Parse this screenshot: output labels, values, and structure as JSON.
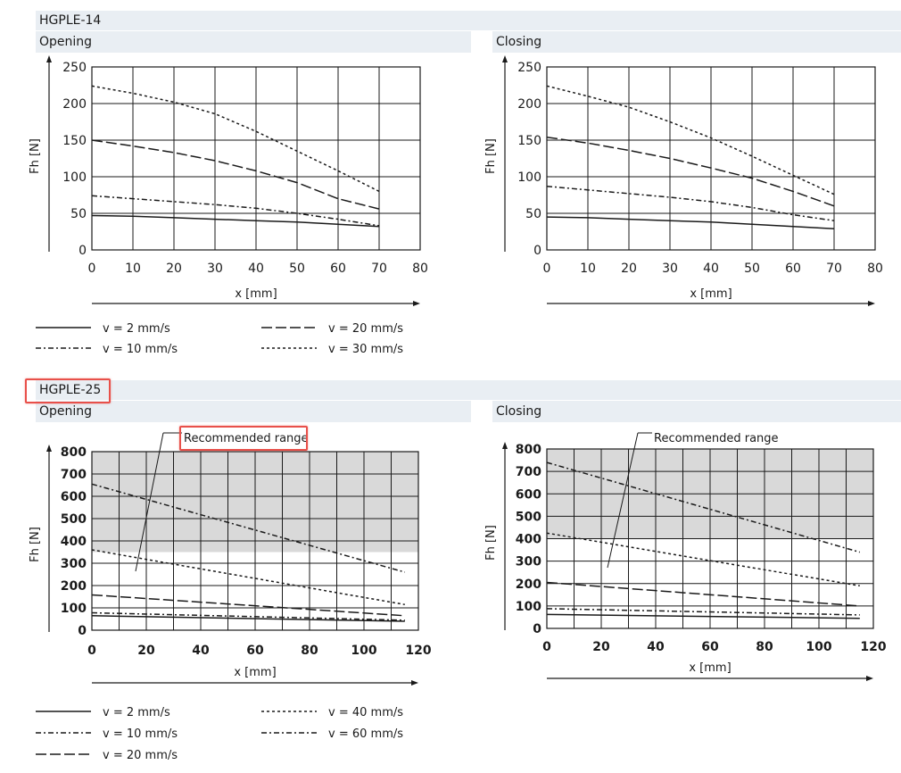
{
  "sections": [
    {
      "title": "HGPLE-14",
      "charts": [
        {
          "type": "line",
          "title": "Opening",
          "xlabel": "x [mm]",
          "ylabel": "Fh [N]",
          "xlim": [
            0,
            80
          ],
          "ylim": [
            0,
            250
          ],
          "x_ticks": [
            0,
            10,
            20,
            30,
            40,
            50,
            60,
            70,
            80
          ],
          "y_ticks": [
            0,
            50,
            100,
            150,
            200,
            250
          ],
          "grid": true,
          "series": [
            {
              "name": "v = 2 mm/s",
              "style": "solid",
              "x": [
                0,
                10,
                20,
                30,
                40,
                50,
                60,
                70
              ],
              "y": [
                47,
                46,
                44,
                42,
                40,
                38,
                35,
                32
              ]
            },
            {
              "name": "v = 10 mm/s",
              "style": "dashdot",
              "x": [
                0,
                10,
                20,
                30,
                40,
                50,
                60,
                70
              ],
              "y": [
                74,
                70,
                66,
                62,
                57,
                50,
                42,
                33
              ]
            },
            {
              "name": "v = 20 mm/s",
              "style": "longdash",
              "x": [
                0,
                10,
                20,
                30,
                40,
                50,
                60,
                70
              ],
              "y": [
                150,
                142,
                133,
                122,
                108,
                92,
                70,
                56
              ]
            },
            {
              "name": "v = 30 mm/s",
              "style": "dotted",
              "x": [
                0,
                10,
                20,
                30,
                40,
                50,
                60,
                70
              ],
              "y": [
                224,
                214,
                202,
                186,
                162,
                135,
                108,
                80
              ]
            }
          ]
        },
        {
          "type": "line",
          "title": "Closing",
          "xlabel": "x [mm]",
          "ylabel": "Fh [N]",
          "xlim": [
            0,
            80
          ],
          "ylim": [
            0,
            250
          ],
          "x_ticks": [
            0,
            10,
            20,
            30,
            40,
            50,
            60,
            70,
            80
          ],
          "y_ticks": [
            0,
            50,
            100,
            150,
            200,
            250
          ],
          "grid": true,
          "series": [
            {
              "name": "v = 2 mm/s",
              "style": "solid",
              "x": [
                0,
                10,
                20,
                30,
                40,
                50,
                60,
                70
              ],
              "y": [
                45,
                44,
                42,
                40,
                38,
                35,
                32,
                29
              ]
            },
            {
              "name": "v = 10 mm/s",
              "style": "dashdot",
              "x": [
                0,
                10,
                20,
                30,
                40,
                50,
                60,
                70
              ],
              "y": [
                87,
                82,
                77,
                72,
                66,
                58,
                48,
                40
              ]
            },
            {
              "name": "v = 20 mm/s",
              "style": "longdash",
              "x": [
                0,
                10,
                20,
                30,
                40,
                50,
                60,
                70
              ],
              "y": [
                154,
                146,
                136,
                125,
                112,
                98,
                80,
                60
              ]
            },
            {
              "name": "v = 30 mm/s",
              "style": "dotted",
              "x": [
                0,
                10,
                20,
                30,
                40,
                50,
                60,
                70
              ],
              "y": [
                224,
                210,
                195,
                175,
                153,
                128,
                102,
                76
              ]
            }
          ]
        }
      ],
      "legend": [
        {
          "label": "v = 2 mm/s",
          "style": "solid"
        },
        {
          "label": "v = 20 mm/s",
          "style": "longdash"
        },
        {
          "label": "v = 10 mm/s",
          "style": "dashdot"
        },
        {
          "label": "v = 30 mm/s",
          "style": "dotted"
        }
      ]
    },
    {
      "title": "HGPLE-25",
      "charts": [
        {
          "type": "line",
          "title": "Opening",
          "xlabel": "x [mm]",
          "ylabel": "Fh [N]",
          "xlim": [
            0,
            120
          ],
          "ylim": [
            0,
            800
          ],
          "x_ticks": [
            0,
            20,
            40,
            60,
            80,
            100,
            120
          ],
          "y_ticks": [
            0,
            100,
            200,
            300,
            400,
            500,
            600,
            700,
            800
          ],
          "x_grid_step": 10,
          "grid": true,
          "shaded_range": {
            "label": "Recommended range",
            "y": [
              350,
              800
            ]
          },
          "series": [
            {
              "name": "v = 2 mm/s",
              "style": "solid",
              "x": [
                0,
                115
              ],
              "y": [
                65,
                40
              ]
            },
            {
              "name": "v = 10 mm/s",
              "style": "dashdot",
              "x": [
                0,
                115
              ],
              "y": [
                78,
                45
              ]
            },
            {
              "name": "v = 20 mm/s",
              "style": "longdash",
              "x": [
                0,
                115
              ],
              "y": [
                158,
                65
              ]
            },
            {
              "name": "v = 40 mm/s",
              "style": "dotted",
              "x": [
                0,
                115
              ],
              "y": [
                360,
                115
              ]
            },
            {
              "name": "v = 60 mm/s",
              "style": "dashdot",
              "x": [
                0,
                115
              ],
              "y": [
                655,
                260
              ]
            }
          ]
        },
        {
          "type": "line",
          "title": "Closing",
          "xlabel": "x [mm]",
          "ylabel": "Fh [N]",
          "xlim": [
            0,
            120
          ],
          "ylim": [
            0,
            800
          ],
          "x_ticks": [
            0,
            20,
            40,
            60,
            80,
            100,
            120
          ],
          "y_ticks": [
            0,
            100,
            200,
            300,
            400,
            500,
            600,
            700,
            800
          ],
          "x_grid_step": 10,
          "grid": true,
          "shaded_range": {
            "label": "Recommended range",
            "y": [
              400,
              800
            ]
          },
          "series": [
            {
              "name": "v = 2 mm/s",
              "style": "solid",
              "x": [
                0,
                115
              ],
              "y": [
                62,
                45
              ]
            },
            {
              "name": "v = 10 mm/s",
              "style": "dashdot",
              "x": [
                0,
                115
              ],
              "y": [
                88,
                60
              ]
            },
            {
              "name": "v = 20 mm/s",
              "style": "longdash",
              "x": [
                0,
                115
              ],
              "y": [
                205,
                100
              ]
            },
            {
              "name": "v = 40 mm/s",
              "style": "dotted",
              "x": [
                0,
                115
              ],
              "y": [
                425,
                190
              ]
            },
            {
              "name": "v = 60 mm/s",
              "style": "dashdot",
              "x": [
                0,
                115
              ],
              "y": [
                740,
                340
              ]
            }
          ]
        }
      ],
      "legend": [
        {
          "label": "v = 2 mm/s",
          "style": "solid"
        },
        {
          "label": "v = 40 mm/s",
          "style": "dotted"
        },
        {
          "label": "v = 10 mm/s",
          "style": "dashdot"
        },
        {
          "label": "v = 60 mm/s",
          "style": "dashdot"
        },
        {
          "label": "v = 20 mm/s",
          "style": "longdash"
        }
      ]
    }
  ],
  "colors": {
    "line": "#1a1a1a",
    "grid": "#1a1a1a",
    "band": "#e9eef3",
    "shade": "#d9d9d9",
    "highlight": "#e8504a"
  }
}
